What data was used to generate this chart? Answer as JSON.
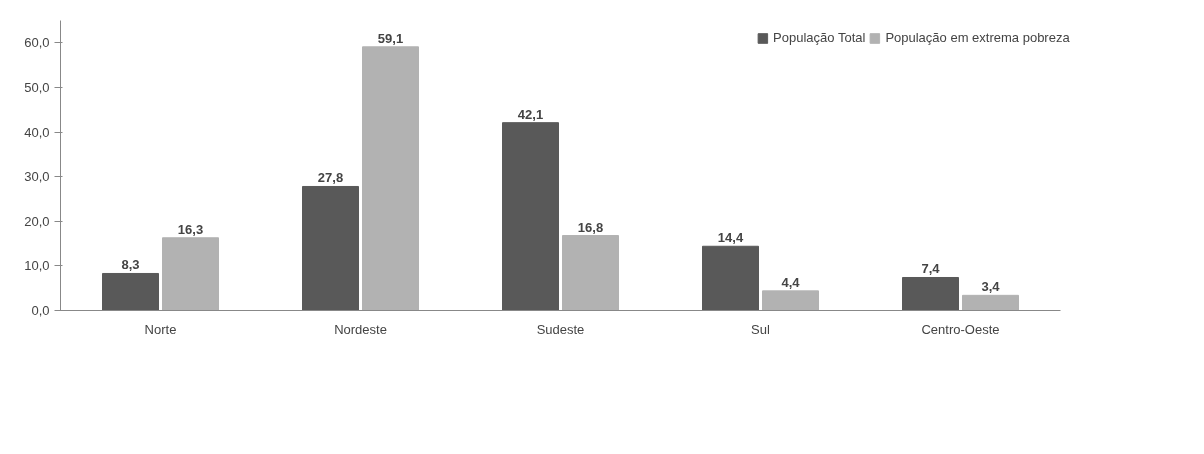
{
  "chart_data": {
    "type": "bar",
    "categories": [
      "Norte",
      "Nordeste",
      "Sudeste",
      "Sul",
      "Centro-Oeste"
    ],
    "series": [
      {
        "name": "População Total",
        "color": "#595959",
        "values": [
          8.3,
          27.8,
          42.1,
          14.4,
          7.4
        ],
        "value_labels": [
          "8,3",
          "27,8",
          "42,1",
          "14,4",
          "7,4"
        ]
      },
      {
        "name": "População em extrema pobreza",
        "color": "#b2b2b2",
        "values": [
          16.3,
          59.1,
          16.8,
          4.4,
          3.4
        ],
        "value_labels": [
          "16,3",
          "59,1",
          "16,8",
          "4,4",
          "3,4"
        ]
      }
    ],
    "ylim": [
      0,
      65
    ],
    "yticks": [
      {
        "value": 0,
        "label": "0,0"
      },
      {
        "value": 10,
        "label": "10,0"
      },
      {
        "value": 20,
        "label": "20,0"
      },
      {
        "value": 30,
        "label": "30,0"
      },
      {
        "value": 40,
        "label": "40,0"
      },
      {
        "value": 50,
        "label": "50,0"
      },
      {
        "value": 60,
        "label": "60,0"
      }
    ],
    "legend": "top right"
  }
}
